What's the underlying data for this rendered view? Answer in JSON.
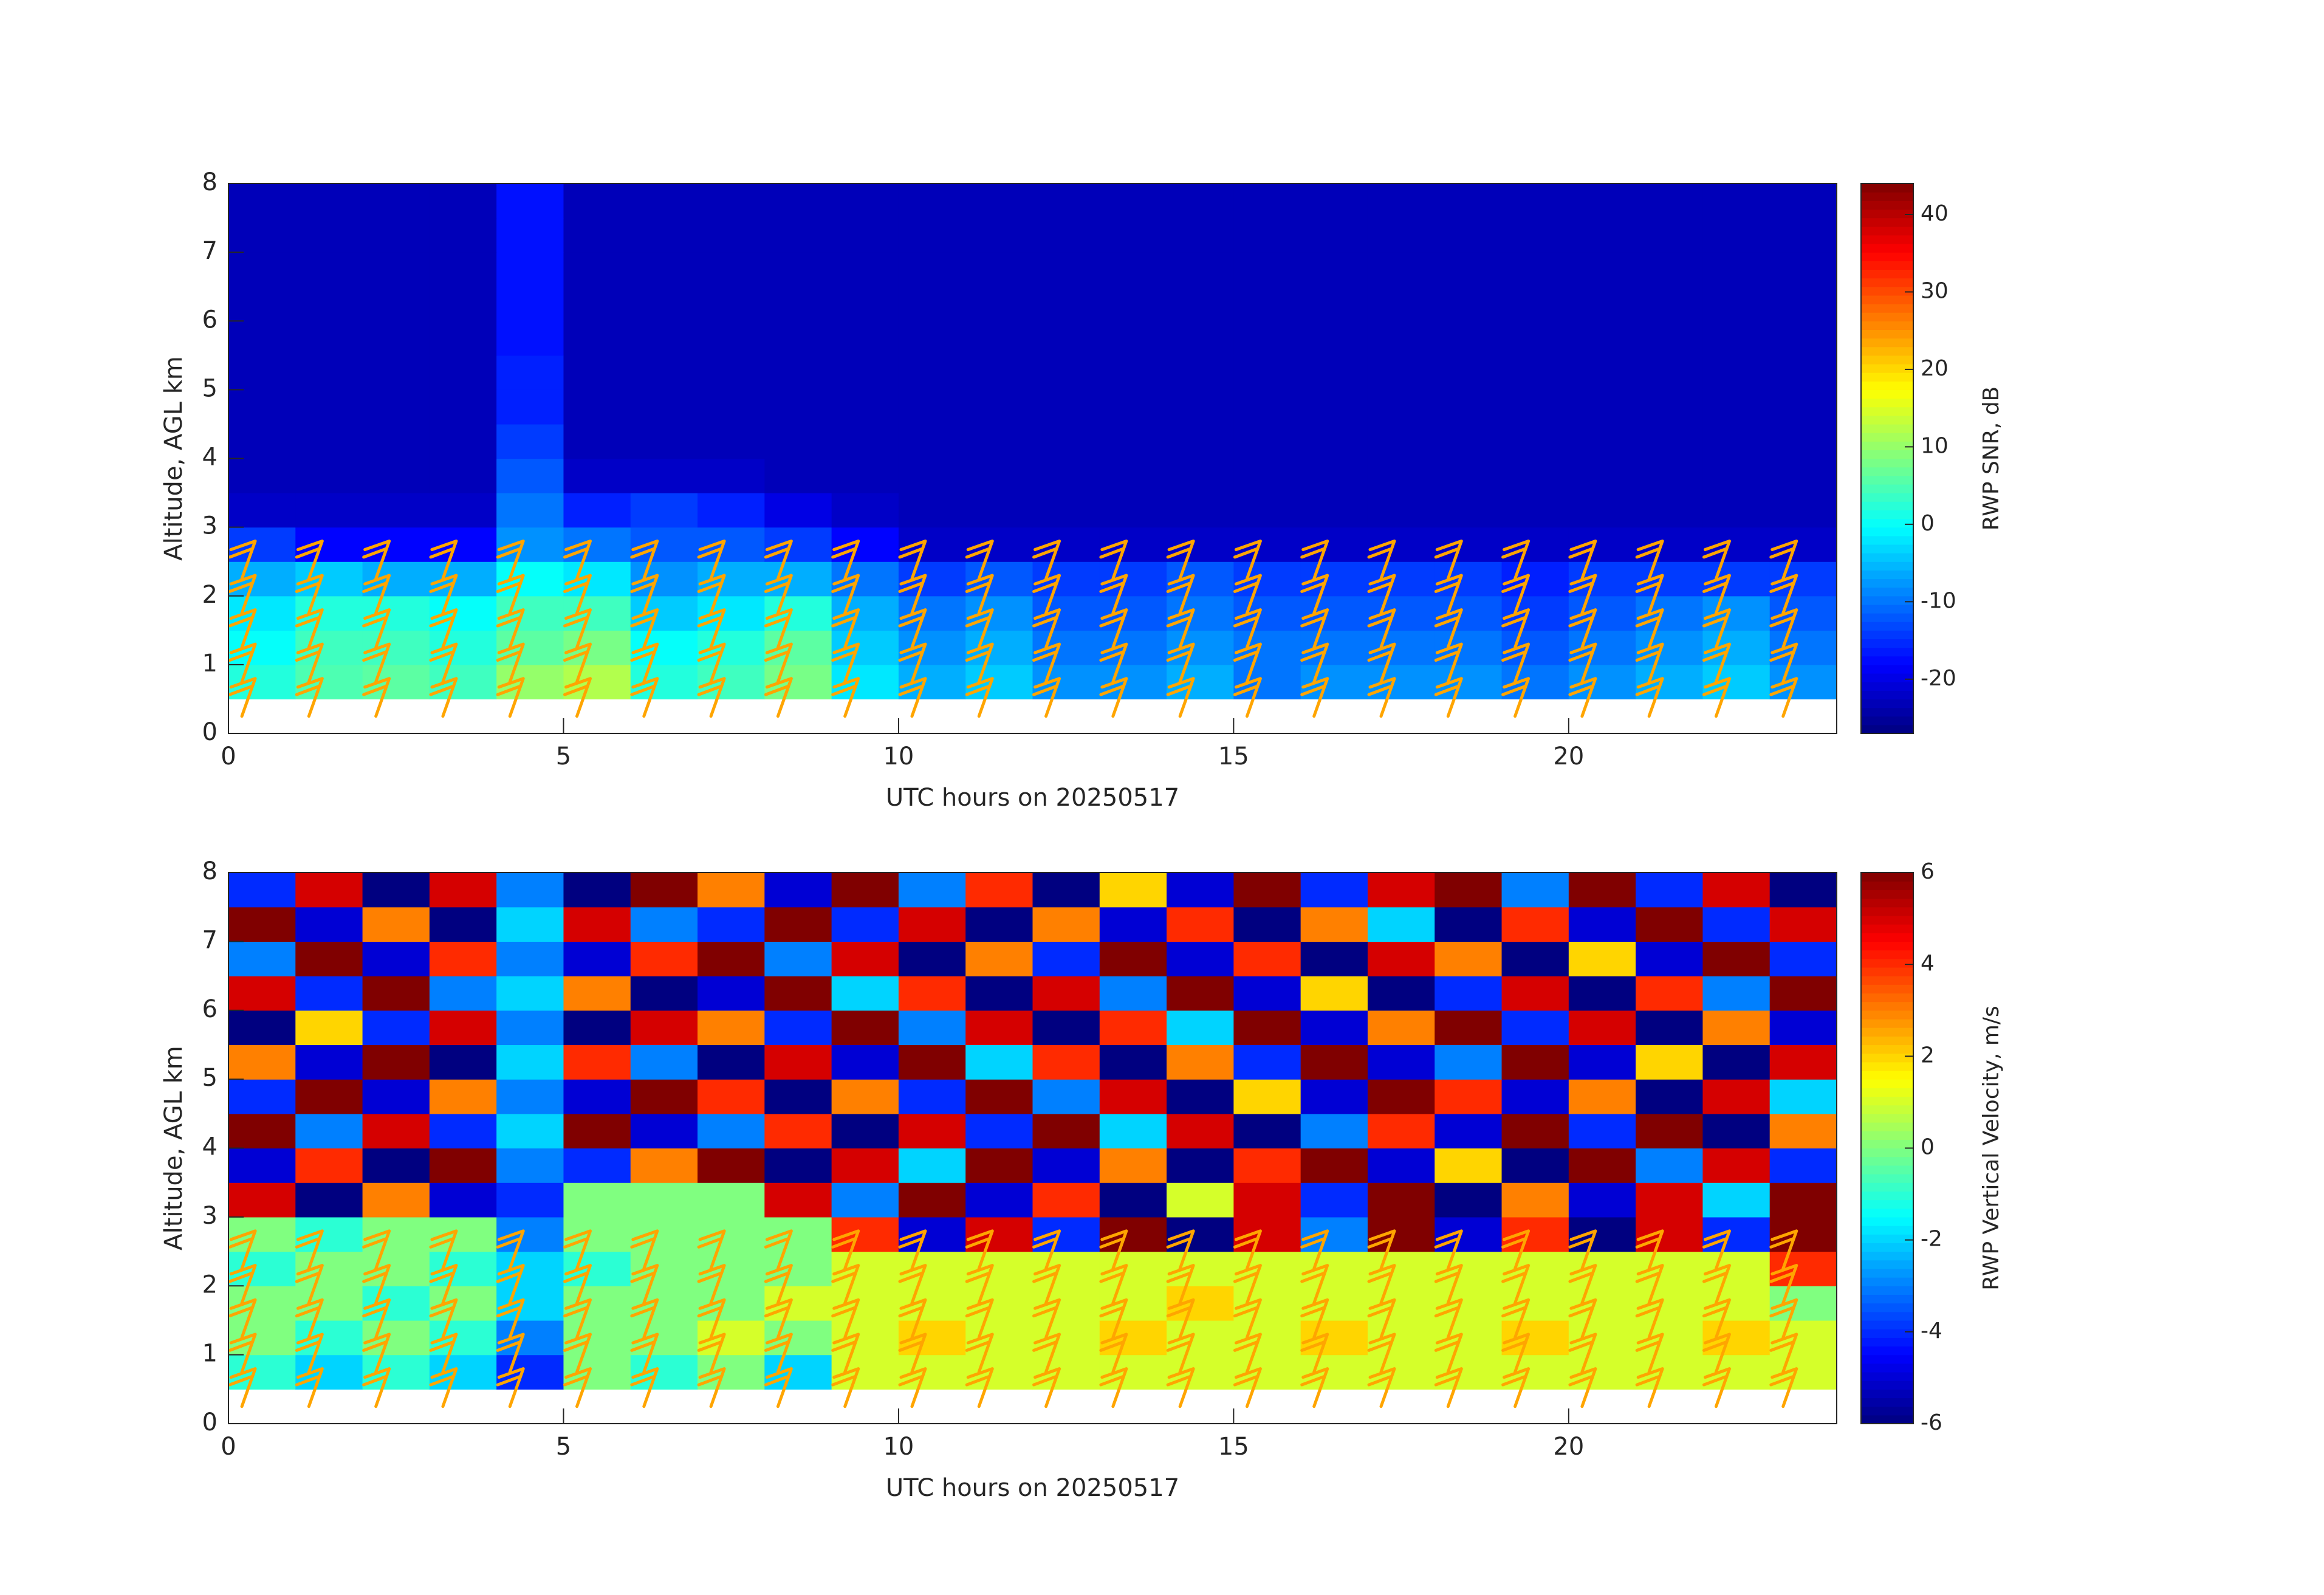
{
  "chart_data": [
    {
      "type": "heatmap",
      "xlabel": "UTC hours on 20250517",
      "ylabel": "Altitude, AGL km",
      "xlim": [
        0,
        24
      ],
      "xticks": [
        0,
        5,
        10,
        15,
        20
      ],
      "ylim": [
        0,
        8
      ],
      "yticks": [
        0,
        1,
        2,
        3,
        4,
        5,
        6,
        7,
        8
      ],
      "x_bins": [
        0,
        1,
        2,
        3,
        4,
        5,
        6,
        7,
        8,
        9,
        10,
        11,
        12,
        13,
        14,
        15,
        16,
        17,
        18,
        19,
        20,
        21,
        22,
        23,
        24
      ],
      "y_bins": [
        0.5,
        1,
        1.5,
        2,
        2.5,
        3,
        3.5,
        4,
        4.5,
        5,
        5.5,
        6,
        6.5,
        7,
        7.5,
        8
      ],
      "values": [
        [
          2,
          5,
          6,
          4,
          10,
          12,
          2,
          4,
          8,
          -2,
          -6,
          -4,
          -8,
          -8,
          -6,
          -10,
          -8,
          -8,
          -8,
          -10,
          -8,
          -6,
          -4,
          -8
        ],
        [
          0,
          4,
          4,
          2,
          6,
          8,
          0,
          2,
          6,
          -4,
          -8,
          -6,
          -10,
          -10,
          -8,
          -10,
          -10,
          -10,
          -10,
          -12,
          -10,
          -8,
          -6,
          -10
        ],
        [
          -2,
          2,
          2,
          0,
          4,
          4,
          -4,
          -2,
          2,
          -6,
          -10,
          -8,
          -12,
          -12,
          -10,
          -12,
          -12,
          -12,
          -12,
          -14,
          -12,
          -10,
          -8,
          -12
        ],
        [
          -6,
          -4,
          -6,
          -6,
          0,
          -2,
          -8,
          -6,
          -6,
          -10,
          -14,
          -12,
          -14,
          -14,
          -12,
          -14,
          -14,
          -14,
          -14,
          -16,
          -14,
          -14,
          -14,
          -14
        ],
        [
          -14,
          -18,
          -18,
          -18,
          -8,
          -10,
          -12,
          -12,
          -14,
          -18,
          -22,
          -22,
          -22,
          -22,
          -22,
          -22,
          -22,
          -22,
          -22,
          -22,
          -22,
          -22,
          -22,
          -22
        ],
        [
          -22,
          -22,
          -22,
          -22,
          -10,
          -16,
          -14,
          -16,
          -20,
          -22,
          -23,
          -23,
          -23,
          -23,
          -23,
          -23,
          -23,
          -23,
          -23,
          -23,
          -23,
          -23,
          -23,
          -23
        ],
        [
          -23,
          -23,
          -23,
          -23,
          -12,
          -22,
          -22,
          -22,
          -23,
          -23,
          -23,
          -23,
          -23,
          -23,
          -23,
          -23,
          -23,
          -23,
          -23,
          -23,
          -23,
          -23,
          -23,
          -23
        ],
        [
          -23,
          -23,
          -23,
          -23,
          -14,
          -23,
          -23,
          -23,
          -23,
          -23,
          -23,
          -23,
          -23,
          -23,
          -23,
          -23,
          -23,
          -23,
          -23,
          -23,
          -23,
          -23,
          -23,
          -23
        ],
        [
          -23,
          -23,
          -23,
          -23,
          -16,
          -23,
          -23,
          -23,
          -23,
          -23,
          -23,
          -23,
          -23,
          -23,
          -23,
          -23,
          -23,
          -23,
          -23,
          -23,
          -23,
          -23,
          -23,
          -23
        ],
        [
          -23,
          -23,
          -23,
          -23,
          -16,
          -23,
          -23,
          -23,
          -23,
          -23,
          -23,
          -23,
          -23,
          -23,
          -23,
          -23,
          -23,
          -23,
          -23,
          -23,
          -23,
          -23,
          -23,
          -23
        ],
        [
          -23,
          -23,
          -23,
          -23,
          -17,
          -23,
          -23,
          -23,
          -23,
          -23,
          -23,
          -23,
          -23,
          -23,
          -23,
          -23,
          -23,
          -23,
          -23,
          -23,
          -23,
          -23,
          -23,
          -23
        ],
        [
          -23,
          -23,
          -23,
          -23,
          -17,
          -23,
          -23,
          -23,
          -23,
          -23,
          -23,
          -23,
          -23,
          -23,
          -23,
          -23,
          -23,
          -23,
          -23,
          -23,
          -23,
          -23,
          -23,
          -23
        ],
        [
          -23,
          -23,
          -23,
          -23,
          -17,
          -23,
          -23,
          -23,
          -23,
          -23,
          -23,
          -23,
          -23,
          -23,
          -23,
          -23,
          -23,
          -23,
          -23,
          -23,
          -23,
          -23,
          -23,
          -23
        ],
        [
          -23,
          -23,
          -23,
          -23,
          -17,
          -23,
          -23,
          -23,
          -23,
          -23,
          -23,
          -23,
          -23,
          -23,
          -23,
          -23,
          -23,
          -23,
          -23,
          -23,
          -23,
          -23,
          -23,
          -23
        ],
        [
          -23,
          -23,
          -23,
          -23,
          -17,
          -23,
          -23,
          -23,
          -23,
          -23,
          -23,
          -23,
          -23,
          -23,
          -23,
          -23,
          -23,
          -23,
          -23,
          -23,
          -23,
          -23,
          -23,
          -23
        ]
      ],
      "clim": [
        -27,
        44
      ],
      "cticks": [
        -20,
        -10,
        0,
        10,
        20,
        30,
        40
      ],
      "colorbar_label": "RWP SNR, dB",
      "colormap": "jet"
    },
    {
      "type": "heatmap",
      "xlabel": "UTC hours on 20250517",
      "ylabel": "Altitude, AGL km",
      "xlim": [
        0,
        24
      ],
      "xticks": [
        0,
        5,
        10,
        15,
        20
      ],
      "ylim": [
        0,
        8
      ],
      "yticks": [
        0,
        1,
        2,
        3,
        4,
        5,
        6,
        7,
        8
      ],
      "x_bins": [
        0,
        1,
        2,
        3,
        4,
        5,
        6,
        7,
        8,
        9,
        10,
        11,
        12,
        13,
        14,
        15,
        16,
        17,
        18,
        19,
        20,
        21,
        22,
        23,
        24
      ],
      "y_bins": [
        0.5,
        1,
        1.5,
        2,
        2.5,
        3,
        3.5,
        4,
        4.5,
        5,
        5.5,
        6,
        6.5,
        7,
        7.5,
        8
      ],
      "values": [
        [
          -1,
          -2,
          -1,
          -2,
          -4,
          0,
          -1,
          0,
          -2,
          1,
          1,
          1,
          1,
          1,
          1,
          1,
          1,
          1,
          1,
          1,
          1,
          1,
          1,
          1
        ],
        [
          0,
          -1,
          0,
          -1,
          -3,
          0,
          0,
          1,
          0,
          1,
          2,
          1,
          1,
          2,
          1,
          1,
          2,
          1,
          1,
          2,
          1,
          1,
          2,
          1
        ],
        [
          0,
          0,
          -1,
          0,
          -2,
          0,
          0,
          0,
          1,
          1,
          1,
          1,
          1,
          1,
          2,
          1,
          1,
          1,
          1,
          1,
          1,
          1,
          1,
          0
        ],
        [
          -1,
          0,
          0,
          -1,
          -2,
          -1,
          0,
          0,
          0,
          1,
          1,
          1,
          1,
          1,
          1,
          1,
          1,
          1,
          1,
          1,
          1,
          1,
          1,
          4
        ],
        [
          0,
          -1,
          0,
          0,
          -3,
          0,
          0,
          0,
          0,
          4,
          -5,
          5,
          -4,
          6,
          -6,
          5,
          -3,
          6,
          -5,
          4,
          -6,
          5,
          -4,
          6
        ],
        [
          5,
          -6,
          3,
          -5,
          -4,
          0,
          0,
          0,
          5,
          -3,
          6,
          -5,
          4,
          -6,
          1,
          5,
          -4,
          6,
          -6,
          3,
          -5,
          5,
          -2,
          6
        ],
        [
          -5,
          4,
          -6,
          6,
          -3,
          -4,
          3,
          6,
          -6,
          5,
          -2,
          6,
          -5,
          3,
          -6,
          4,
          6,
          -5,
          2,
          -6,
          6,
          -3,
          5,
          -4
        ],
        [
          6,
          -3,
          5,
          -4,
          -2,
          6,
          -5,
          -3,
          4,
          -6,
          5,
          -4,
          6,
          -2,
          5,
          -6,
          -3,
          4,
          -5,
          6,
          -4,
          6,
          -6,
          3
        ],
        [
          -4,
          6,
          -5,
          3,
          -3,
          -5,
          6,
          4,
          -6,
          3,
          -4,
          6,
          -3,
          5,
          -6,
          2,
          -5,
          6,
          4,
          -5,
          3,
          -6,
          5,
          -2
        ],
        [
          3,
          -5,
          6,
          -6,
          -2,
          4,
          -3,
          -6,
          5,
          -5,
          6,
          -2,
          4,
          -6,
          3,
          -4,
          6,
          -5,
          -3,
          6,
          -5,
          2,
          -6,
          5
        ],
        [
          -6,
          2,
          -4,
          5,
          -3,
          -6,
          5,
          3,
          -4,
          6,
          -3,
          5,
          -6,
          4,
          -2,
          6,
          -5,
          3,
          6,
          -4,
          5,
          -6,
          3,
          -5
        ],
        [
          5,
          -4,
          6,
          -3,
          -2,
          3,
          -6,
          -5,
          6,
          -2,
          4,
          -6,
          5,
          -3,
          6,
          -5,
          2,
          -6,
          -4,
          5,
          -6,
          4,
          -3,
          6
        ],
        [
          -3,
          6,
          -5,
          4,
          -3,
          -5,
          4,
          6,
          -3,
          5,
          -6,
          3,
          -4,
          6,
          -5,
          4,
          -6,
          5,
          3,
          -6,
          2,
          -5,
          6,
          -4
        ],
        [
          6,
          -5,
          3,
          -6,
          -2,
          5,
          -3,
          -4,
          6,
          -4,
          5,
          -6,
          3,
          -5,
          4,
          -6,
          3,
          -2,
          -6,
          4,
          -5,
          6,
          -4,
          5
        ],
        [
          -4,
          5,
          -6,
          5,
          -3,
          -6,
          6,
          3,
          -5,
          6,
          -3,
          4,
          -6,
          2,
          -5,
          6,
          -4,
          5,
          6,
          -3,
          6,
          -4,
          5,
          -6
        ]
      ],
      "clim": [
        -6,
        6
      ],
      "cticks": [
        -6,
        -4,
        -2,
        0,
        2,
        4,
        6
      ],
      "colorbar_label": "RWP Vertical Velocity, m/s",
      "colormap": "jet"
    }
  ],
  "wind_barbs": {
    "x": [
      0.2,
      1.2,
      2.2,
      3.2,
      4.2,
      5.2,
      6.2,
      7.2,
      8.2,
      9.2,
      10.2,
      11.2,
      12.2,
      13.2,
      14.2,
      15.2,
      16.2,
      17.2,
      18.2,
      19.2,
      20.2,
      21.2,
      22.2,
      23.2
    ],
    "altitudes": [
      0.25,
      0.75,
      1.25,
      1.75,
      2.25
    ],
    "color": "#ffa500"
  }
}
